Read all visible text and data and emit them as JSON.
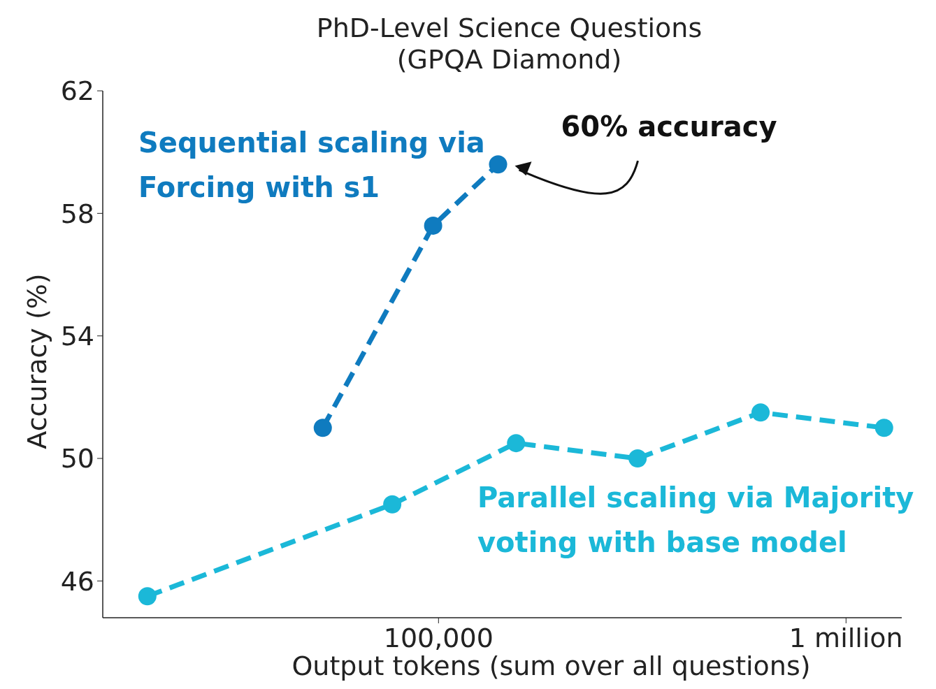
{
  "chart_data": {
    "type": "line",
    "title": "PhD-Level Science Questions\n(GPQA Diamond)",
    "xlabel": "Output tokens (sum over all questions)",
    "ylabel": "Accuracy (%)",
    "log": "x",
    "xlim": [
      15000,
      1370000
    ],
    "xticks": [
      {
        "value": 100000,
        "label": "100,000"
      },
      {
        "value": 1000000,
        "label": "1 million"
      }
    ],
    "ylim": [
      44.8,
      62
    ],
    "yticks": [
      46,
      50,
      54,
      58,
      62
    ],
    "grid": false,
    "legend": false,
    "marker": "circle",
    "line_style": "dashed",
    "series": [
      {
        "name": "Sequential scaling via Forcing with s1",
        "color": "#0f7bbf",
        "x": [
          52000,
          97000,
          140000
        ],
        "values": [
          51.0,
          57.6,
          59.6
        ]
      },
      {
        "name": "Parallel scaling via Majority voting with base model",
        "color": "#1bb8d8",
        "x": [
          19300,
          77000,
          155000,
          308000,
          617000,
          1240000
        ],
        "values": [
          45.5,
          48.5,
          50.5,
          50.0,
          51.5,
          51.0
        ]
      }
    ],
    "annotations": [
      {
        "text": "60% accuracy",
        "x": 140000,
        "y": 59.6
      }
    ]
  }
}
